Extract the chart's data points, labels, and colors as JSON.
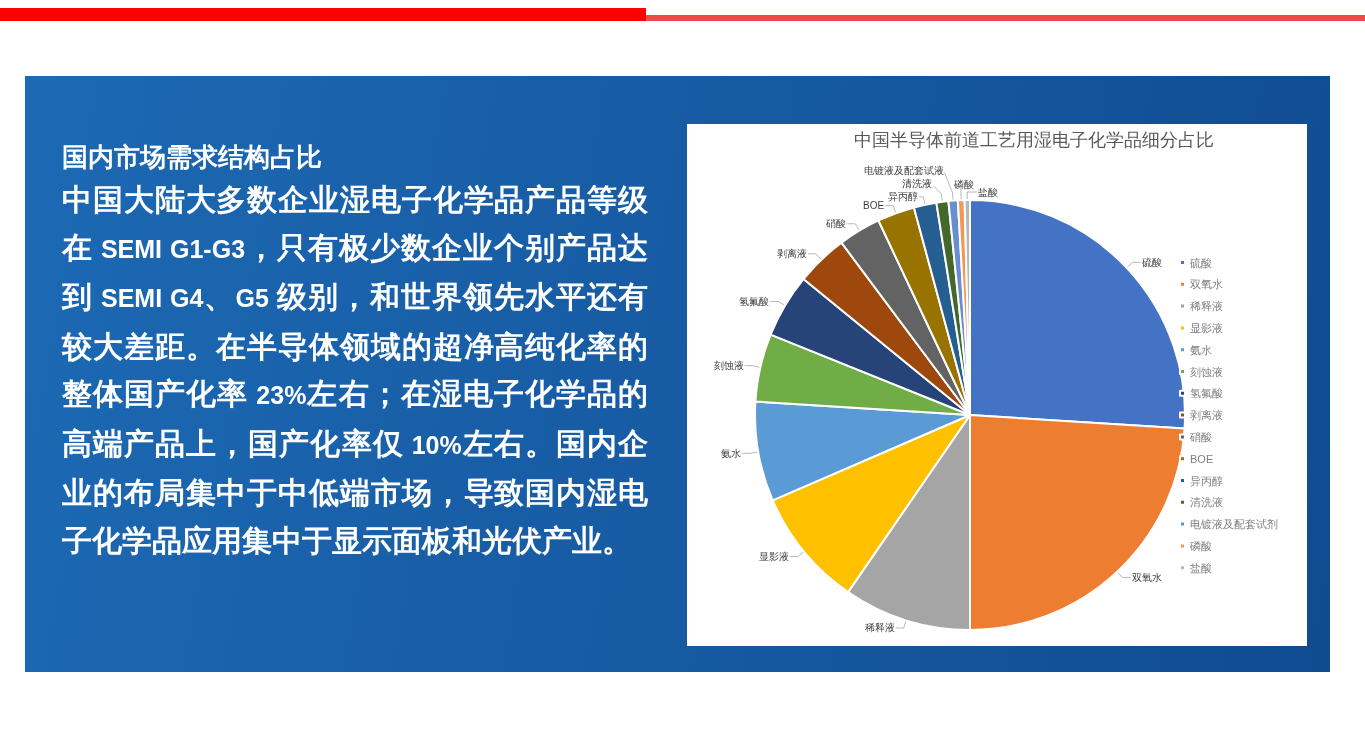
{
  "chart_data": {
    "type": "pie",
    "title": "中国半导体前道工艺用湿电子化学品细分占比",
    "categories": [
      "硫酸",
      "双氧水",
      "稀释液",
      "显影液",
      "氨水",
      "刻蚀液",
      "氢氟酸",
      "剥离液",
      "硝酸",
      "BOE",
      "异丙醇",
      "清洗液",
      "电镀液及配套试剂",
      "磷酸",
      "盐酸"
    ],
    "values": [
      26,
      24,
      9.6,
      8.9,
      7.5,
      5.1,
      4.8,
      3.9,
      3.2,
      2.8,
      1.7,
      0.9,
      0.7,
      0.5,
      0.4
    ],
    "colors": [
      "#4472c4",
      "#ed7d31",
      "#a5a5a5",
      "#ffc000",
      "#5b9bd5",
      "#70ad47",
      "#264478",
      "#9e480e",
      "#636363",
      "#997300",
      "#255e91",
      "#43682b",
      "#698ed0",
      "#f1975a",
      "#b7b7b7"
    ],
    "value_labels": [
      "硫酸",
      "双氧水",
      "稀释液",
      "显影液",
      "氨水",
      "刻蚀液",
      "氢氟酸",
      "剥离液",
      "硝酸",
      "BOE",
      "异丙醇",
      "清洗液",
      "电镀液及配套试液",
      "磷酸",
      "盐酸"
    ],
    "legend": "right",
    "annotations": [
      "国内市场需求结构占比",
      "中国大陆大多数企业湿电子化学品产品等级在 SEMI G1-G3，只有极少数企业个别产品达到 SEMI G4、G5 级别，和世界领先水平还有较大差距。在半导体领域的超净高纯化率的整体国产化率 23%左右；在湿电子化学品的高端产品上，国产化率仅 10%左右。国内企业的布局集中于中低端市场，导致国内湿电子化学品应用集中于显示面板和光伏产业。"
    ]
  }
}
